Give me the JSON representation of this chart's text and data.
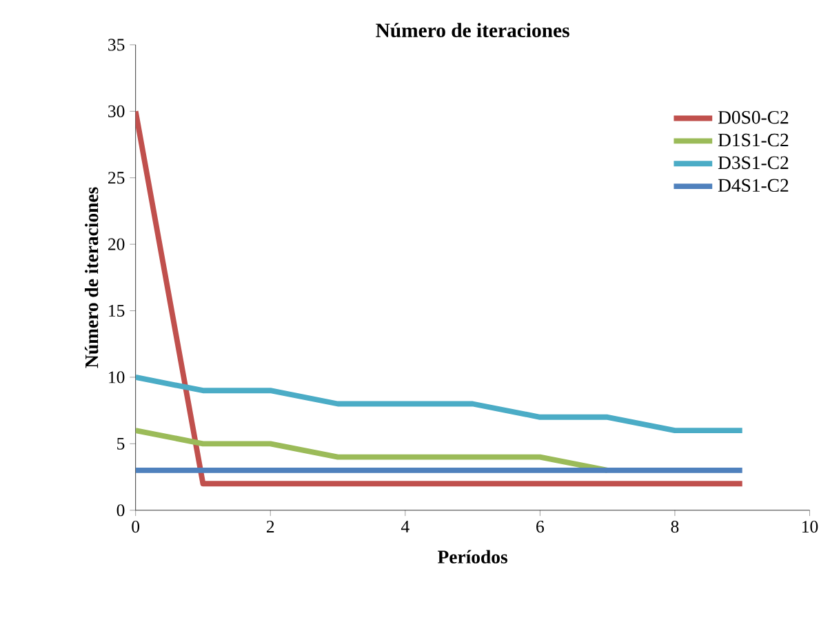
{
  "chart_data": {
    "type": "line",
    "title": "Número de iteraciones",
    "xlabel": "Períodos",
    "ylabel": "Número de iteraciones",
    "x": [
      0,
      1,
      2,
      3,
      4,
      5,
      6,
      7,
      8,
      9
    ],
    "series": [
      {
        "name": "D0S0-C2",
        "color": "#c0504d",
        "values": [
          30,
          2,
          2,
          2,
          2,
          2,
          2,
          2,
          2,
          2
        ]
      },
      {
        "name": "D1S1-C2",
        "color": "#9bbb59",
        "values": [
          6,
          5,
          5,
          4,
          4,
          4,
          4,
          3,
          null,
          null
        ]
      },
      {
        "name": "D3S1-C2",
        "color": "#4bacc6",
        "values": [
          10,
          9,
          9,
          8,
          8,
          8,
          7,
          7,
          6,
          6
        ]
      },
      {
        "name": "D4S1-C2",
        "color": "#4f81bd",
        "values": [
          3,
          3,
          3,
          3,
          3,
          3,
          3,
          3,
          3,
          3
        ]
      }
    ],
    "xlim": [
      0,
      10
    ],
    "ylim": [
      0,
      35
    ],
    "xticks": [
      0,
      2,
      4,
      6,
      8,
      10
    ],
    "yticks": [
      0,
      5,
      10,
      15,
      20,
      25,
      30,
      35
    ],
    "legend": "top right"
  }
}
